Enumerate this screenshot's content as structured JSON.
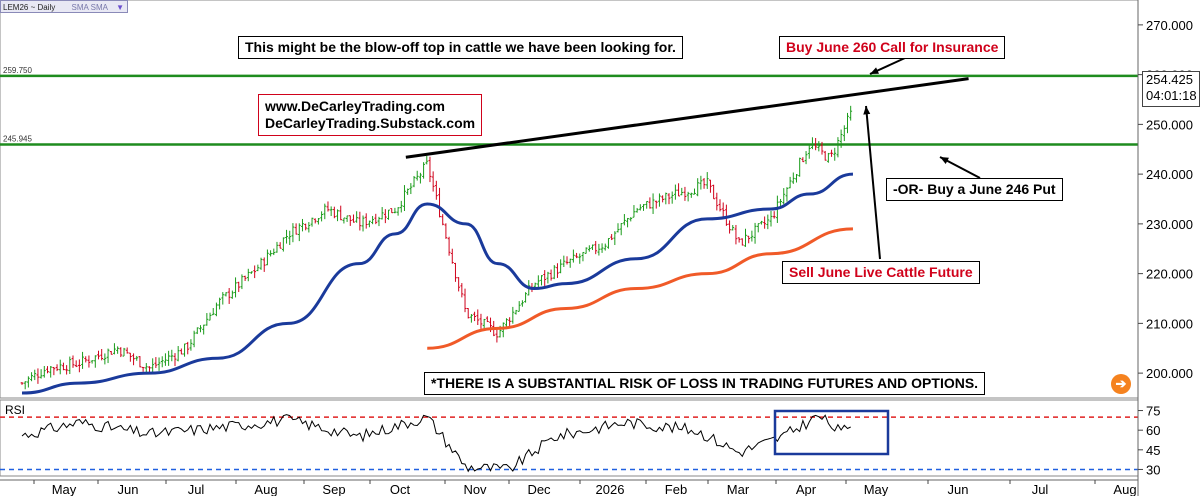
{
  "symbol_bar": {
    "label": "LEM26 ~ Daily",
    "overlay": "SMA SMA"
  },
  "clock": {
    "last_price": "254.425",
    "countdown": "04:01:18"
  },
  "annotations": {
    "headline": "This might be the blow-off top in cattle we have been looking for.",
    "buy_call": "Buy June 260 Call for Insurance",
    "website_line1": "www.DeCarleyTrading.com",
    "website_line2": "DeCarleyTrading.Substack.com",
    "buy_put": "-OR- Buy a June 246 Put",
    "sell_future": "Sell June Live Cattle Future",
    "disclaimer": "*THERE IS A SUBSTANTIAL RISK OF LOSS IN TRADING FUTURES AND OPTIONS."
  },
  "colors": {
    "candle_up": "#1a9b1a",
    "candle_down": "#d0021b",
    "sma_short": "#1a3a9b",
    "sma_long": "#f05a28",
    "level_line": "#1e8c1e",
    "trend_line": "#000000",
    "rsi_line": "#000000",
    "rsi_overbought": "#e02020",
    "rsi_oversold": "#2060e0",
    "highlight_box": "#1a3a9b"
  },
  "chart_data": [
    {
      "type": "candlestick",
      "title": "",
      "y_axis_ticks": [
        "200.000",
        "210.000",
        "220.000",
        "230.000",
        "240.000",
        "250.000",
        "260.000",
        "270.000"
      ],
      "x_axis_ticks": [
        "May",
        "Jun",
        "Jul",
        "Aug",
        "Sep",
        "Oct",
        "Nov",
        "Dec",
        "2026",
        "Feb",
        "Mar",
        "Apr",
        "May",
        "Jun",
        "Jul",
        "Aug"
      ],
      "ylim": [
        195,
        275
      ],
      "horizontal_levels": [
        {
          "label": "259.750",
          "value": 259.75
        },
        {
          "label": "245.945",
          "value": 245.945
        }
      ],
      "last_price": 254.425,
      "trend_line": {
        "from": {
          "date": "Oct 10",
          "value": 244
        },
        "to": {
          "date": "Jun 1",
          "value": 259
        }
      },
      "series": [
        {
          "kind": "price",
          "x": [
            "Apr 20",
            "May 1",
            "May 15",
            "Jun 1",
            "Jun 15",
            "Jul 1",
            "Jul 15",
            "Aug 1",
            "Aug 15",
            "Sep 1",
            "Sep 15",
            "Oct 1",
            "Oct 15",
            "Nov 1",
            "Nov 15",
            "Dec 1",
            "Dec 15",
            "Jan 1",
            "Jan 15",
            "Feb 1",
            "Feb 15",
            "Mar 1",
            "Mar 15",
            "Apr 1",
            "Apr 10",
            "Apr 20"
          ],
          "y": [
            198,
            201,
            202,
            205,
            201,
            205,
            214,
            221,
            228,
            233,
            230,
            233,
            242,
            212,
            208,
            218,
            222,
            226,
            233,
            236,
            238,
            226,
            231,
            246,
            243,
            253
          ]
        },
        {
          "kind": "sma_short",
          "x": [
            "Apr 20",
            "May 15",
            "Jun 15",
            "Jul 15",
            "Aug 15",
            "Sep 15",
            "Oct 1",
            "Oct 15",
            "Nov 1",
            "Nov 15",
            "Dec 1",
            "Dec 15",
            "Jan 15",
            "Feb 15",
            "Mar 15",
            "Apr 1",
            "Apr 20"
          ],
          "y": [
            196,
            198,
            200,
            203,
            210,
            222,
            228,
            234,
            230,
            222,
            217,
            218,
            223,
            231,
            233,
            236,
            240
          ]
        },
        {
          "kind": "sma_long",
          "x": [
            "Oct 15",
            "Nov 15",
            "Dec 15",
            "Jan 15",
            "Feb 15",
            "Mar 15",
            "Apr 20"
          ],
          "y": [
            205,
            209,
            213,
            217,
            220,
            224,
            229
          ]
        }
      ]
    },
    {
      "type": "line",
      "title": "RSI",
      "y_axis_ticks": [
        "30",
        "45",
        "60",
        "75"
      ],
      "reference_levels": [
        70,
        30
      ],
      "ylim": [
        25,
        80
      ],
      "series": [
        {
          "kind": "rsi",
          "x": [
            "Apr 20",
            "May 15",
            "Jun 15",
            "Jul 15",
            "Aug 15",
            "Sep 15",
            "Oct 15",
            "Nov 1",
            "Nov 20",
            "Dec 10",
            "Jan 10",
            "Feb 10",
            "Mar 1",
            "Mar 20",
            "Apr 5",
            "Apr 15",
            "Apr 20"
          ],
          "y": [
            56,
            66,
            57,
            62,
            68,
            55,
            70,
            32,
            30,
            55,
            66,
            60,
            43,
            55,
            71,
            58,
            67
          ]
        }
      ]
    }
  ]
}
